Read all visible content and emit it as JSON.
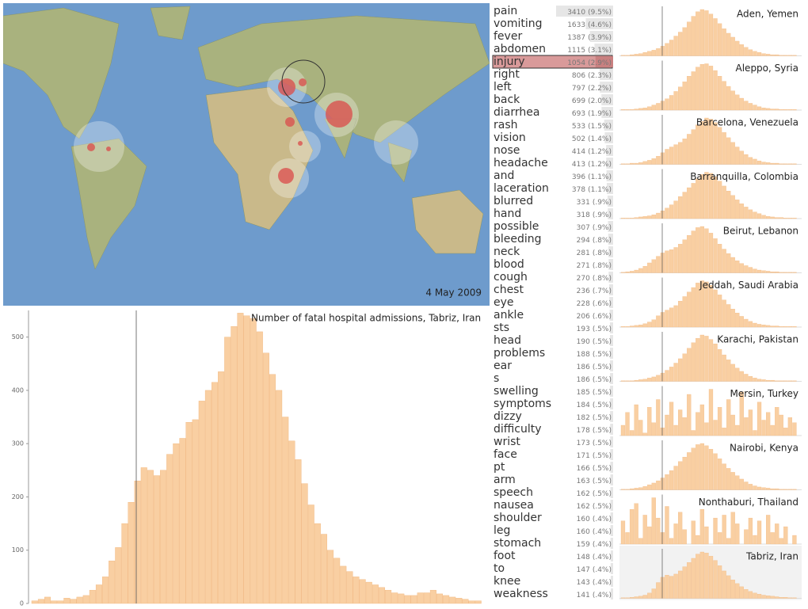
{
  "map": {
    "date": "4 May 2009"
  },
  "chart_data": {
    "type": "bar",
    "title": "Number of fatal hospital admissions, Tabriz, Iran",
    "color": "#f9cfa2",
    "values": [
      5,
      8,
      12,
      5,
      5,
      10,
      8,
      12,
      15,
      25,
      35,
      50,
      80,
      105,
      150,
      190,
      230,
      255,
      250,
      240,
      250,
      280,
      300,
      310,
      340,
      345,
      380,
      400,
      415,
      435,
      500,
      520,
      545,
      540,
      535,
      510,
      470,
      430,
      400,
      350,
      305,
      270,
      225,
      185,
      150,
      130,
      100,
      85,
      70,
      60,
      50,
      45,
      40,
      35,
      30,
      25,
      20,
      18,
      15,
      15,
      20,
      20,
      25,
      18,
      15,
      12,
      10,
      8,
      5,
      5
    ],
    "ylim": [
      0,
      550
    ],
    "yticks": [
      0,
      100,
      200,
      300,
      400,
      500
    ]
  },
  "terms": {
    "selected": 4,
    "rows": [
      {
        "term": "pain",
        "count": 3410,
        "share": "(9.5%)"
      },
      {
        "term": "vomiting",
        "count": 1633,
        "share": "(4.6%)"
      },
      {
        "term": "fever",
        "count": 1387,
        "share": "(3.9%)"
      },
      {
        "term": "abdomen",
        "count": 1115,
        "share": "(3.1%)"
      },
      {
        "term": "injury",
        "count": 1054,
        "share": "(2.9%)"
      },
      {
        "term": "right",
        "count": 806,
        "share": "(2.3%)"
      },
      {
        "term": "left",
        "count": 797,
        "share": "(2.2%)"
      },
      {
        "term": "back",
        "count": 699,
        "share": "(2.0%)"
      },
      {
        "term": "diarrhea",
        "count": 693,
        "share": "(1.9%)"
      },
      {
        "term": "rash",
        "count": 533,
        "share": "(1.5%)"
      },
      {
        "term": "vision",
        "count": 502,
        "share": "(1.4%)"
      },
      {
        "term": "nose",
        "count": 414,
        "share": "(1.2%)"
      },
      {
        "term": "headache",
        "count": 413,
        "share": "(1.2%)"
      },
      {
        "term": "and",
        "count": 396,
        "share": "(1.1%)"
      },
      {
        "term": "laceration",
        "count": 378,
        "share": "(1.1%)"
      },
      {
        "term": "blurred",
        "count": 331,
        "share": "(.9%)"
      },
      {
        "term": "hand",
        "count": 318,
        "share": "(.9%)"
      },
      {
        "term": "possible",
        "count": 307,
        "share": "(.9%)"
      },
      {
        "term": "bleeding",
        "count": 294,
        "share": "(.8%)"
      },
      {
        "term": "neck",
        "count": 281,
        "share": "(.8%)"
      },
      {
        "term": "blood",
        "count": 271,
        "share": "(.8%)"
      },
      {
        "term": "cough",
        "count": 270,
        "share": "(.8%)"
      },
      {
        "term": "chest",
        "count": 236,
        "share": "(.7%)"
      },
      {
        "term": "eye",
        "count": 228,
        "share": "(.6%)"
      },
      {
        "term": "ankle",
        "count": 206,
        "share": "(.6%)"
      },
      {
        "term": "sts",
        "count": 193,
        "share": "(.5%)"
      },
      {
        "term": "head",
        "count": 190,
        "share": "(.5%)"
      },
      {
        "term": "problems",
        "count": 188,
        "share": "(.5%)"
      },
      {
        "term": "ear",
        "count": 186,
        "share": "(.5%)"
      },
      {
        "term": "s",
        "count": 186,
        "share": "(.5%)"
      },
      {
        "term": "swelling",
        "count": 185,
        "share": "(.5%)"
      },
      {
        "term": "symptoms",
        "count": 184,
        "share": "(.5%)"
      },
      {
        "term": "dizzy",
        "count": 182,
        "share": "(.5%)"
      },
      {
        "term": "difficulty",
        "count": 178,
        "share": "(.5%)"
      },
      {
        "term": "wrist",
        "count": 173,
        "share": "(.5%)"
      },
      {
        "term": "face",
        "count": 171,
        "share": "(.5%)"
      },
      {
        "term": "pt",
        "count": 166,
        "share": "(.5%)"
      },
      {
        "term": "arm",
        "count": 163,
        "share": "(.5%)"
      },
      {
        "term": "speech",
        "count": 162,
        "share": "(.5%)"
      },
      {
        "term": "nausea",
        "count": 162,
        "share": "(.5%)"
      },
      {
        "term": "shoulder",
        "count": 160,
        "share": "(.4%)"
      },
      {
        "term": "leg",
        "count": 160,
        "share": "(.4%)"
      },
      {
        "term": "stomach",
        "count": 159,
        "share": "(.4%)"
      },
      {
        "term": "foot",
        "count": 148,
        "share": "(.4%)"
      },
      {
        "term": "to",
        "count": 147,
        "share": "(.4%)"
      },
      {
        "term": "knee",
        "count": 143,
        "share": "(.4%)"
      },
      {
        "term": "weakness",
        "count": 141,
        "share": "(.4%)"
      }
    ]
  },
  "panels": {
    "selected": 10,
    "items": [
      {
        "city": "Aden, Yemen",
        "values": [
          1,
          1,
          2,
          3,
          4,
          6,
          8,
          10,
          13,
          17,
          22,
          28,
          35,
          42,
          50,
          60,
          70,
          78,
          82,
          80,
          74,
          66,
          57,
          48,
          40,
          33,
          26,
          20,
          15,
          11,
          8,
          6,
          4,
          3,
          2,
          2,
          1,
          1,
          1,
          1
        ]
      },
      {
        "city": "Aleppo, Syria",
        "values": [
          1,
          1,
          1,
          2,
          3,
          4,
          6,
          9,
          12,
          16,
          20,
          26,
          33,
          41,
          50,
          60,
          68,
          76,
          81,
          82,
          78,
          70,
          60,
          51,
          42,
          34,
          27,
          21,
          16,
          12,
          9,
          6,
          4,
          3,
          2,
          2,
          1,
          1,
          1,
          1
        ]
      },
      {
        "city": "Barcelona, Venezuela",
        "values": [
          1,
          1,
          2,
          2,
          3,
          5,
          7,
          10,
          14,
          20,
          26,
          30,
          34,
          38,
          44,
          52,
          60,
          68,
          74,
          80,
          78,
          72,
          64,
          55,
          46,
          38,
          30,
          23,
          17,
          12,
          9,
          6,
          4,
          3,
          2,
          2,
          1,
          1,
          1,
          1
        ]
      },
      {
        "city": "Barranquilla, Colombia",
        "values": [
          1,
          1,
          1,
          2,
          3,
          4,
          5,
          7,
          10,
          14,
          19,
          25,
          32,
          40,
          48,
          56,
          64,
          72,
          80,
          84,
          82,
          76,
          68,
          59,
          50,
          42,
          34,
          27,
          21,
          16,
          12,
          9,
          6,
          4,
          3,
          2,
          2,
          1,
          1,
          1
        ]
      },
      {
        "city": "Beirut, Lebanon",
        "values": [
          1,
          2,
          3,
          5,
          8,
          12,
          18,
          24,
          30,
          36,
          40,
          42,
          46,
          52,
          60,
          68,
          76,
          82,
          84,
          80,
          72,
          62,
          52,
          43,
          35,
          28,
          22,
          17,
          13,
          10,
          7,
          5,
          4,
          3,
          2,
          2,
          1,
          1,
          1,
          1
        ]
      },
      {
        "city": "Jeddah, Saudi Arabia",
        "values": [
          1,
          1,
          2,
          3,
          4,
          6,
          9,
          13,
          20,
          26,
          30,
          34,
          38,
          46,
          54,
          62,
          70,
          78,
          82,
          80,
          74,
          66,
          57,
          48,
          40,
          32,
          25,
          19,
          14,
          10,
          7,
          5,
          4,
          3,
          2,
          2,
          1,
          1,
          1,
          1
        ]
      },
      {
        "city": "Karachi, Pakistan",
        "values": [
          1,
          1,
          1,
          2,
          3,
          4,
          6,
          8,
          11,
          15,
          20,
          26,
          33,
          41,
          50,
          60,
          70,
          78,
          84,
          82,
          76,
          68,
          58,
          48,
          39,
          31,
          24,
          18,
          13,
          9,
          6,
          4,
          3,
          2,
          2,
          1,
          1,
          1,
          1,
          1
        ]
      },
      {
        "city": "Mersin, Turkey",
        "values": [
          20,
          45,
          10,
          60,
          30,
          5,
          55,
          25,
          70,
          15,
          40,
          65,
          20,
          50,
          35,
          80,
          10,
          45,
          60,
          25,
          90,
          30,
          55,
          15,
          70,
          40,
          20,
          85,
          35,
          50,
          10,
          65,
          30,
          45,
          20,
          55,
          40,
          15,
          35,
          25
        ]
      },
      {
        "city": "Nairobi, Kenya",
        "values": [
          1,
          1,
          2,
          3,
          4,
          6,
          9,
          12,
          16,
          21,
          27,
          34,
          42,
          50,
          58,
          66,
          74,
          80,
          82,
          78,
          72,
          64,
          55,
          46,
          38,
          31,
          25,
          19,
          14,
          10,
          7,
          5,
          4,
          3,
          2,
          2,
          1,
          1,
          1,
          1
        ]
      },
      {
        "city": "Nonthaburi, Thailand",
        "values": [
          40,
          20,
          60,
          70,
          10,
          50,
          30,
          80,
          45,
          20,
          65,
          10,
          35,
          55,
          25,
          0,
          40,
          15,
          60,
          30,
          0,
          45,
          20,
          50,
          10,
          55,
          35,
          0,
          25,
          45,
          15,
          40,
          0,
          50,
          20,
          35,
          10,
          30,
          0,
          15
        ]
      },
      {
        "city": "Tabriz, Iran",
        "values": [
          1,
          1,
          2,
          3,
          4,
          6,
          10,
          18,
          30,
          40,
          44,
          42,
          46,
          52,
          60,
          68,
          76,
          84,
          88,
          86,
          80,
          72,
          62,
          52,
          43,
          35,
          28,
          22,
          17,
          13,
          10,
          8,
          6,
          5,
          4,
          3,
          2,
          2,
          1,
          1
        ]
      }
    ]
  }
}
